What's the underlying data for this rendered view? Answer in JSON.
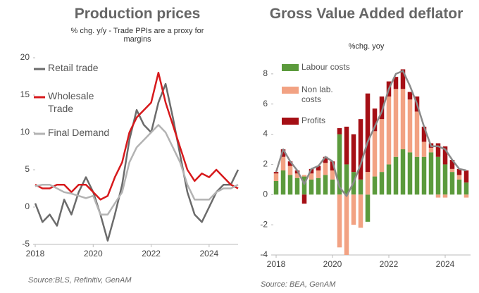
{
  "chart_data": [
    {
      "type": "line",
      "title": "Production prices",
      "subtitle": "% chg. y/y - Trade PPIs are a proxy for margins",
      "source": "Source:BLS, Refinitiv, GenAM",
      "x": [
        2018,
        2018.25,
        2018.5,
        2018.75,
        2019,
        2019.25,
        2019.5,
        2019.75,
        2020,
        2020.25,
        2020.5,
        2020.75,
        2021,
        2021.25,
        2021.5,
        2021.75,
        2022,
        2022.25,
        2022.5,
        2022.75,
        2023,
        2023.25,
        2023.5,
        2023.75,
        2024,
        2024.25,
        2024.5,
        2024.75,
        2025
      ],
      "series": [
        {
          "name": "Retail trade",
          "color": "#6b6b6b",
          "values": [
            0.5,
            -2,
            -1,
            -2.5,
            1,
            -1,
            2,
            4,
            2,
            -1,
            -4.5,
            -1,
            3,
            9,
            13,
            11,
            10,
            14,
            16.5,
            12,
            7,
            2,
            -1,
            -2,
            0,
            2,
            3,
            3,
            5
          ]
        },
        {
          "name": "Wholesale Trade",
          "color": "#d7191c",
          "values": [
            3,
            2.5,
            2.5,
            3,
            3,
            2,
            3,
            3,
            2,
            1,
            1.5,
            4,
            6,
            10,
            12,
            13,
            14,
            18,
            14,
            11,
            8,
            5,
            3.5,
            4.5,
            4,
            5,
            4,
            3,
            2.5
          ]
        },
        {
          "name": "Final Demand",
          "color": "#b3b3b3",
          "values": [
            2.8,
            3,
            3,
            2.5,
            2,
            1.8,
            1.5,
            1.2,
            1.5,
            -1,
            -1,
            0.5,
            2,
            6,
            8,
            9,
            10,
            11,
            10,
            8,
            6,
            3,
            1,
            1,
            1,
            2,
            2.5,
            2.5,
            3
          ]
        }
      ],
      "xlim": [
        2018,
        2025
      ],
      "xticks": [
        2018,
        2020,
        2022,
        2024
      ],
      "ylim": [
        -5,
        20
      ],
      "yticks": [
        -5,
        0,
        5,
        10,
        15,
        20
      ]
    },
    {
      "type": "bar",
      "stacked": true,
      "title": "Gross Value Added deflator",
      "subtitle": "%chg. yoy",
      "source": "Source: BEA, GenAM",
      "x": [
        2018,
        2018.25,
        2018.5,
        2018.75,
        2019,
        2019.25,
        2019.5,
        2019.75,
        2020,
        2020.25,
        2020.5,
        2020.75,
        2021,
        2021.25,
        2021.5,
        2021.75,
        2022,
        2022.25,
        2022.5,
        2022.75,
        2023,
        2023.25,
        2023.5,
        2023.75,
        2024,
        2024.25,
        2024.5,
        2024.75
      ],
      "series": [
        {
          "name": "Labour costs",
          "color": "#5b9a3c",
          "values": [
            0.9,
            1.6,
            1.3,
            1.1,
            1.2,
            1.0,
            1.1,
            1.3,
            1.0,
            4.0,
            2.0,
            1.5,
            1.0,
            -1.8,
            1.2,
            1.5,
            2.0,
            2.5,
            3.0,
            2.8,
            2.5,
            2.5,
            2.8,
            2.5,
            2.0,
            1.5,
            1.0,
            0.8
          ]
        },
        {
          "name": "Non lab. costs",
          "color": "#f2a283",
          "values": [
            0.5,
            0.9,
            0.6,
            0.3,
            0.1,
            0.4,
            0.5,
            0.8,
            0.6,
            -3.5,
            -4.0,
            -2.0,
            -2.2,
            1.5,
            3.0,
            3.5,
            4.5,
            4.5,
            4.0,
            3.5,
            3.0,
            1.0,
            0.3,
            -0.2,
            -0.2,
            0.2,
            0.3,
            -0.2
          ]
        },
        {
          "name": "Profits",
          "color": "#a50f15",
          "values": [
            0.1,
            0.5,
            0.3,
            0.2,
            -0.6,
            0.3,
            0.3,
            0.4,
            0.6,
            0.4,
            2.5,
            2.5,
            4.0,
            5.2,
            1.5,
            1.5,
            1.0,
            0.8,
            1.3,
            0.5,
            1.0,
            1.0,
            0.3,
            0.9,
            1.2,
            0.6,
            0.4,
            0.8
          ]
        }
      ],
      "line": {
        "color": "#8a8a8a",
        "values": [
          1.5,
          3.0,
          2.2,
          1.6,
          0.7,
          1.7,
          1.9,
          2.5,
          2.2,
          0.5,
          -0.1,
          0.8,
          2.0,
          3.5,
          4.5,
          5.5,
          7.0,
          8.0,
          8.2,
          7.2,
          6.0,
          4.5,
          3.2,
          3.2,
          3.0,
          2.3,
          1.7,
          1.6
        ]
      },
      "xlim": [
        2017.9,
        2024.9
      ],
      "xticks": [
        2018,
        2020,
        2022,
        2024
      ],
      "ylim": [
        -4,
        8.6
      ],
      "yticks": [
        -4,
        -2,
        0,
        2,
        4,
        6,
        8
      ]
    }
  ]
}
